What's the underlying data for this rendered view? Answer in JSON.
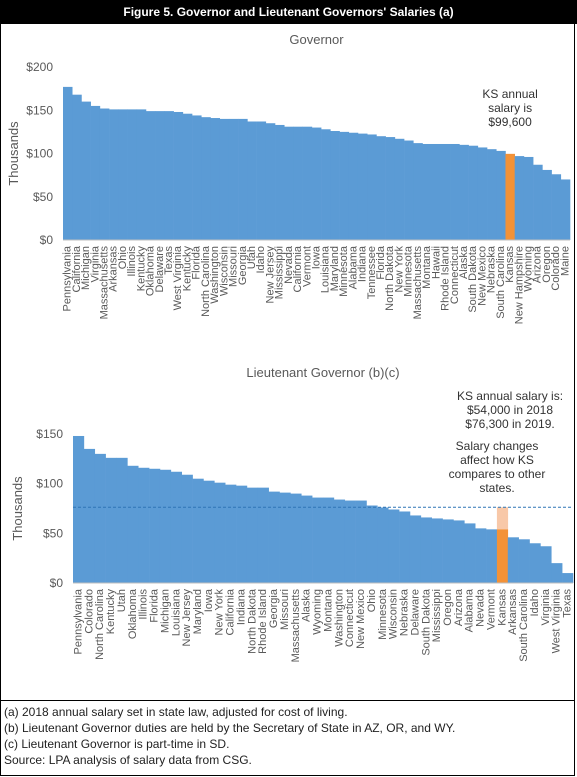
{
  "figure_title": "Figure 5. Governor and Lieutenant Governors' Salaries (a)",
  "colors": {
    "bar": "#5b9bd5",
    "highlight": "#f39237",
    "highlight_light": "#f8c8a8",
    "refline": "#2e75b6",
    "text": "#595959"
  },
  "chart_data": [
    {
      "type": "bar",
      "title": "Governor",
      "ylabel": "Thousands",
      "ylim": [
        0,
        200
      ],
      "yticks": [
        "$0",
        "$50",
        "$100",
        "$150",
        "$200"
      ],
      "highlight": "Kansas",
      "annotation": [
        "KS annual",
        "salary is",
        "$99,600"
      ],
      "categories": [
        "Pennsylvania",
        "California",
        "Michigan",
        "Virginia",
        "Massachusetts",
        "Arkansas",
        "Ohio",
        "Illinois",
        "Kentucky",
        "Oklahoma",
        "Delaware",
        "Texas",
        "West Virginia",
        "Kentucky",
        "Florida",
        "North Carolina",
        "Washington",
        "Wisconsin",
        "Missouri",
        "Georgia",
        "Utah",
        "Idaho",
        "New Jersey",
        "Mississippi",
        "Nevada",
        "California",
        "Vermont",
        "Iowa",
        "Louisiana",
        "Maryland",
        "Minnesota",
        "Alabama",
        "Indiana",
        "Tennessee",
        "Florida",
        "North Dakota",
        "New York",
        "Minnesota",
        "Massachusetts",
        "Montana",
        "Hawaii",
        "Rhode Island",
        "Connecticut",
        "Alaska",
        "South Dakota",
        "New Mexico",
        "Nebraska",
        "South Carolina",
        "Kansas",
        "New Hampshire",
        "Wyoming",
        "Arizona",
        "Oregon",
        "Colorado",
        "Maine"
      ],
      "values": [
        177,
        168,
        160,
        155,
        152,
        151,
        151,
        151,
        151,
        149,
        149,
        149,
        148,
        146,
        144,
        142,
        141,
        140,
        140,
        140,
        137,
        137,
        135,
        133,
        131,
        131,
        131,
        130,
        128,
        126,
        125,
        124,
        123,
        122,
        120,
        119,
        117,
        115,
        112,
        111,
        111,
        111,
        111,
        110,
        109,
        107,
        105,
        103,
        99.6,
        97,
        96,
        87,
        81,
        76,
        70
      ]
    },
    {
      "type": "bar",
      "title": "Lieutenant Governor (b)(c)",
      "ylabel": "Thousands",
      "ylim": [
        0,
        150
      ],
      "yticks": [
        "$0",
        "$50",
        "$100",
        "$150"
      ],
      "highlight": "Kansas",
      "highlight_2019": 76.3,
      "annotation": [
        "KS annual salary is:",
        "$54,000 in 2018",
        "$76,300 in 2019."
      ],
      "annotation2": [
        "Salary changes",
        "affect how KS",
        "compares to other",
        "states."
      ],
      "categories": [
        "Pennsylvania",
        "Colorado",
        "North Carolina",
        "Kentucky",
        "Utah",
        "Oklahoma",
        "Illinois",
        "Florida",
        "Michigan",
        "Louisiana",
        "New Jersey",
        "Maryland",
        "Iowa",
        "New York",
        "California",
        "Indiana",
        "North Dakota",
        "Rhode Island",
        "Georgia",
        "Missouri",
        "Massachusetts",
        "Alaska",
        "Wyoming",
        "Montana",
        "Washington",
        "Connecticut",
        "New Mexico",
        "Ohio",
        "Minnesota",
        "Wisconsin",
        "Nebraska",
        "Delaware",
        "South Dakota",
        "Mississippi",
        "Oregon",
        "Arizona",
        "Alabama",
        "Nevada",
        "Vermont",
        "Kansas",
        "Arkansas",
        "South Carolina",
        "Idaho",
        "Virginia",
        "West Virginia",
        "Texas"
      ],
      "values": [
        148,
        135,
        130,
        126,
        126,
        118,
        116,
        115,
        114,
        112,
        109,
        105,
        103,
        101,
        99,
        98,
        96,
        96,
        92,
        91,
        90,
        88,
        86,
        86,
        84,
        83,
        83,
        78,
        76,
        74,
        72,
        68,
        66,
        65,
        64,
        63,
        60,
        55,
        54,
        54,
        46,
        44,
        40,
        37,
        20,
        10
      ]
    }
  ],
  "notes": [
    "(a) 2018 annual salary set in state law, adjusted for cost of living.",
    "(b) Lieutenant Governor duties are held by the Secretary of State in AZ, OR, and WY.",
    "(c) Lieutenant Governor is part-time in SD.",
    "Source: LPA analysis of salary data from CSG."
  ]
}
